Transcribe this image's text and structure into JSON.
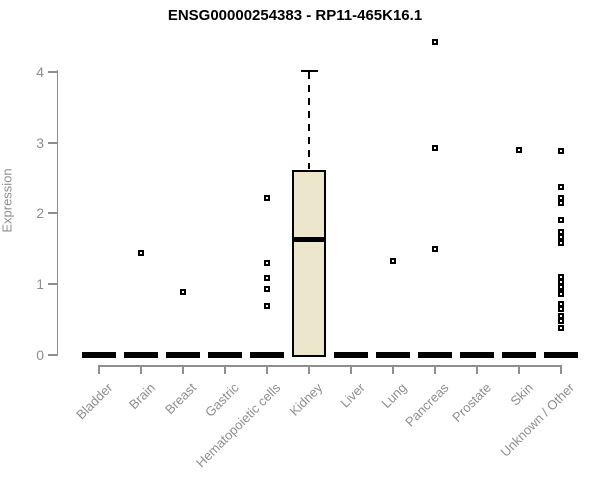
{
  "title": "ENSG00000254383 - RP11-465K16.1",
  "chart_data": {
    "type": "boxplot",
    "title": "ENSG00000254383 - RP11-465K16.1",
    "ylabel": "Expression",
    "xlabel": "",
    "ylim": [
      0,
      4.45
    ],
    "y_ticks": [
      0,
      1,
      2,
      3,
      4
    ],
    "grid": "off",
    "legend": "none",
    "box_fill_color": "#ece6cd",
    "box_stroke_color": "#000000",
    "axis_color": "#8e8e8e",
    "marker_style": "open-square",
    "categories": [
      "Bladder",
      "Brain",
      "Breast",
      "Gastric",
      "Hematopoietic cells",
      "Kidney",
      "Liver",
      "Lung",
      "Pancreas",
      "Prostate",
      "Skin",
      "Unknown / Other"
    ],
    "series": [
      {
        "name": "Bladder",
        "q1": 0,
        "median": 0,
        "q3": 0,
        "whisker_low": 0,
        "whisker_high": 0,
        "outliers": []
      },
      {
        "name": "Brain",
        "q1": 0,
        "median": 0,
        "q3": 0,
        "whisker_low": 0,
        "whisker_high": 0,
        "outliers": [
          1.44
        ]
      },
      {
        "name": "Breast",
        "q1": 0,
        "median": 0,
        "q3": 0,
        "whisker_low": 0,
        "whisker_high": 0,
        "outliers": [
          0.88
        ]
      },
      {
        "name": "Gastric",
        "q1": 0,
        "median": 0,
        "q3": 0,
        "whisker_low": 0,
        "whisker_high": 0,
        "outliers": []
      },
      {
        "name": "Hematopoietic cells",
        "q1": 0,
        "median": 0,
        "q3": 0,
        "whisker_low": 0,
        "whisker_high": 0,
        "outliers": [
          2.21,
          1.3,
          1.09,
          0.93,
          0.68
        ]
      },
      {
        "name": "Kidney",
        "q1": 0,
        "median": 1.63,
        "q3": 2.61,
        "whisker_low": 0,
        "whisker_high": 4.02,
        "outliers": []
      },
      {
        "name": "Liver",
        "q1": 0,
        "median": 0,
        "q3": 0,
        "whisker_low": 0,
        "whisker_high": 0,
        "outliers": []
      },
      {
        "name": "Lung",
        "q1": 0,
        "median": 0,
        "q3": 0,
        "whisker_low": 0,
        "whisker_high": 0,
        "outliers": [
          1.33
        ]
      },
      {
        "name": "Pancreas",
        "q1": 0,
        "median": 0,
        "q3": 0,
        "whisker_low": 0,
        "whisker_high": 0,
        "outliers": [
          4.42,
          2.93,
          1.5
        ]
      },
      {
        "name": "Prostate",
        "q1": 0,
        "median": 0,
        "q3": 0,
        "whisker_low": 0,
        "whisker_high": 0,
        "outliers": []
      },
      {
        "name": "Skin",
        "q1": 0,
        "median": 0,
        "q3": 0,
        "whisker_low": 0,
        "whisker_high": 0,
        "outliers": [
          2.9
        ]
      },
      {
        "name": "Unknown / Other",
        "q1": 0,
        "median": 0,
        "q3": 0,
        "whisker_low": 0,
        "whisker_high": 0,
        "outliers": [
          2.88,
          2.37,
          2.22,
          2.14,
          1.9,
          1.73,
          1.66,
          1.58,
          1.1,
          1.03,
          0.96,
          0.88,
          0.85,
          0.72,
          0.64,
          0.55,
          0.47,
          0.38
        ]
      }
    ]
  }
}
